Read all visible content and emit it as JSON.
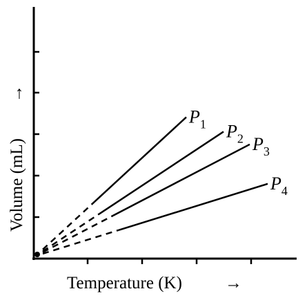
{
  "chart_data": {
    "type": "line",
    "xlabel": "Temperature (K)",
    "ylabel": "Volume (mL)",
    "grid": false,
    "legend": "none",
    "arrows": {
      "x": "→",
      "y": "→"
    },
    "series": [
      {
        "name": "P",
        "subscript": "1",
        "slope": 0.92
      },
      {
        "name": "P",
        "subscript": "2",
        "slope": 0.66
      },
      {
        "name": "P",
        "subscript": "3",
        "slope": 0.52
      },
      {
        "name": "P",
        "subscript": "4",
        "slope": 0.31
      }
    ],
    "colors": {
      "line": "#000000",
      "background": "#ffffff"
    }
  }
}
